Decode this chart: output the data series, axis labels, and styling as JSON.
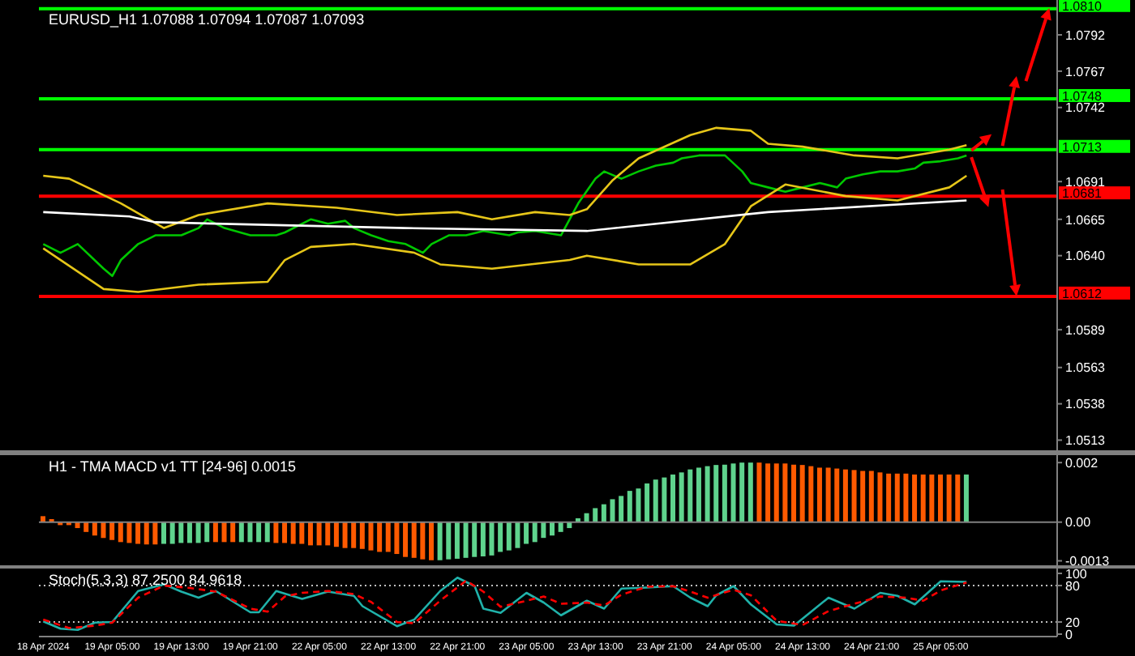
{
  "chart_data": [
    {
      "type": "line",
      "title": "EURUSD_H1 1.07088 1.07094 1.07087 1.07093",
      "tick_labels": "y",
      "marker": "none",
      "ylim": [
        1.0506,
        1.0816
      ],
      "yticks": [
        1.0513,
        1.0538,
        1.0563,
        1.0589,
        {
          "value": 1.064,
          "label": "1.0640"
        },
        1.0665,
        1.0691,
        1.0742,
        1.0767,
        1.0792
      ],
      "categories": [
        null,
        null,
        null,
        null,
        null,
        null,
        null,
        null,
        null,
        null,
        null,
        null,
        null,
        null,
        null,
        null,
        null,
        null,
        null,
        null,
        null,
        null,
        null,
        null,
        null,
        null,
        null,
        null,
        null,
        null,
        null,
        null,
        null,
        null,
        null,
        null,
        null,
        null,
        null,
        null,
        null,
        null,
        null,
        null,
        null,
        null,
        null,
        null,
        null,
        null,
        null,
        null,
        null,
        null,
        null,
        null,
        null,
        null,
        null,
        null,
        null,
        null,
        null,
        null,
        null,
        null,
        null,
        null,
        null,
        null,
        null,
        null,
        null,
        null,
        null,
        null,
        null,
        null,
        null,
        null,
        null,
        null,
        null,
        null,
        null,
        null,
        null,
        null,
        null,
        null,
        null,
        null,
        null,
        null,
        null,
        null,
        null,
        null,
        null,
        null,
        null,
        null,
        null,
        null,
        null,
        null,
        null,
        null,
        null,
        null,
        null,
        null,
        null,
        null,
        null,
        null,
        null,
        null
      ],
      "series": [
        {
          "color": "#00c800",
          "values": [
            1.0648,
            null,
            1.0642,
            null,
            1.0648,
            null,
            null,
            1.0631,
            1.0626,
            1.0637,
            null,
            1.0648,
            null,
            1.0654,
            null,
            null,
            1.0654,
            null,
            1.0659,
            1.0665,
            null,
            1.0659,
            null,
            null,
            1.0654,
            null,
            null,
            1.0654,
            1.0656,
            null,
            null,
            1.0665,
            null,
            1.0662,
            null,
            1.0664,
            1.0659,
            null,
            1.0654,
            null,
            1.065,
            null,
            1.0648,
            null,
            1.0642,
            1.0648,
            null,
            1.0654,
            null,
            1.0654,
            null,
            1.0657,
            null,
            null,
            1.0654,
            1.0656,
            null,
            1.0657,
            null,
            null,
            1.0654,
            1.0665,
            1.0676,
            null,
            1.0693,
            1.0698,
            null,
            1.0693,
            null,
            1.0698,
            null,
            1.0702,
            null,
            1.0704,
            1.0707,
            null,
            1.0709,
            null,
            null,
            1.0709,
            null,
            1.0698,
            1.069,
            null,
            1.0687,
            null,
            1.0684,
            null,
            1.0687,
            null,
            1.069,
            null,
            1.0687,
            1.0693,
            null,
            1.0696,
            null,
            1.0698,
            null,
            1.0698,
            null,
            1.07,
            1.0704,
            null,
            1.0705,
            null,
            1.0707,
            1.0709,
            null,
            null,
            null,
            null,
            null,
            null,
            null,
            null,
            null,
            null
          ]
        },
        {
          "color": "#e6c619",
          "values": [
            1.0695,
            null,
            null,
            1.0693,
            null,
            null,
            null,
            null,
            null,
            1.0676,
            null,
            null,
            null,
            null,
            1.0659,
            null,
            null,
            null,
            1.0668,
            null,
            null,
            null,
            null,
            null,
            null,
            null,
            1.0676,
            null,
            null,
            null,
            null,
            null,
            null,
            null,
            1.0673,
            null,
            null,
            null,
            null,
            null,
            null,
            1.0668,
            null,
            null,
            null,
            null,
            null,
            null,
            1.067,
            null,
            null,
            null,
            1.0665,
            null,
            null,
            null,
            null,
            1.067,
            null,
            null,
            null,
            1.0668,
            null,
            1.0672,
            null,
            null,
            1.0692,
            null,
            null,
            1.0707,
            null,
            null,
            null,
            null,
            null,
            1.0723,
            null,
            null,
            1.0728,
            null,
            null,
            null,
            1.0726,
            null,
            1.0717,
            null,
            null,
            null,
            1.0715,
            null,
            null,
            null,
            null,
            null,
            1.0709,
            null,
            null,
            null,
            null,
            1.0707,
            null,
            null,
            null,
            null,
            null,
            1.0713,
            null,
            1.0716,
            null,
            null,
            null,
            null,
            null,
            null,
            null,
            null,
            null,
            null
          ]
        },
        {
          "color": "#e6c619",
          "values": [
            1.0645,
            null,
            null,
            null,
            null,
            null,
            null,
            1.0617,
            null,
            null,
            null,
            1.0615,
            null,
            null,
            null,
            null,
            null,
            null,
            1.062,
            null,
            null,
            null,
            null,
            null,
            null,
            null,
            1.0622,
            null,
            1.0637,
            null,
            null,
            1.0646,
            null,
            null,
            null,
            null,
            1.0648,
            null,
            null,
            null,
            null,
            null,
            null,
            1.0642,
            null,
            null,
            1.0634,
            null,
            null,
            null,
            null,
            null,
            1.0631,
            null,
            null,
            null,
            null,
            null,
            null,
            null,
            null,
            1.0637,
            null,
            1.064,
            null,
            null,
            null,
            null,
            null,
            1.0634,
            null,
            null,
            null,
            null,
            null,
            1.0634,
            null,
            null,
            null,
            1.0648,
            null,
            null,
            1.0674,
            null,
            null,
            null,
            1.0689,
            null,
            null,
            null,
            null,
            null,
            null,
            1.0681,
            null,
            null,
            null,
            null,
            null,
            1.0678,
            null,
            null,
            null,
            null,
            null,
            1.0687,
            null,
            1.0695,
            null,
            null,
            null,
            null,
            null,
            null,
            null,
            null,
            null,
            null
          ]
        },
        {
          "color": "#ffffff",
          "values": [
            1.067,
            null,
            null,
            null,
            null,
            null,
            null,
            null,
            null,
            null,
            1.0667,
            null,
            null,
            1.0663,
            null,
            null,
            null,
            null,
            null,
            null,
            null,
            null,
            null,
            null,
            null,
            null,
            null,
            null,
            null,
            null,
            null,
            null,
            null,
            null,
            null,
            null,
            null,
            null,
            null,
            null,
            null,
            null,
            1.0659,
            null,
            null,
            null,
            null,
            null,
            null,
            null,
            null,
            null,
            null,
            null,
            null,
            null,
            null,
            null,
            null,
            null,
            null,
            null,
            null,
            1.0657,
            null,
            null,
            null,
            null,
            null,
            null,
            null,
            null,
            null,
            null,
            null,
            null,
            null,
            null,
            null,
            null,
            null,
            null,
            null,
            null,
            1.067,
            null,
            null,
            null,
            null,
            null,
            null,
            null,
            null,
            null,
            null,
            null,
            null,
            null,
            null,
            null,
            null,
            null,
            null,
            null,
            null,
            null,
            null,
            1.0678,
            null,
            null,
            null,
            null,
            null,
            null,
            null,
            null,
            null,
            null
          ]
        }
      ],
      "ref_lines": [
        {
          "axis": "y",
          "value": 1.081,
          "label": "1.0810",
          "color": "#00ff00",
          "line_style": "solid"
        },
        {
          "axis": "y",
          "value": 1.0748,
          "label": "1.0748",
          "color": "#00ff00",
          "line_style": "solid"
        },
        {
          "axis": "y",
          "value": 1.0713,
          "label": "1.0713",
          "color": "#00ff00",
          "line_style": "solid"
        },
        {
          "axis": "y",
          "value": 1.0681,
          "label": "1.0681",
          "color": "#ff0000",
          "line_style": "solid"
        },
        {
          "axis": "y",
          "value": 1.0612,
          "label": "1.0612",
          "color": "#ff0000",
          "line_style": "solid"
        }
      ]
    },
    {
      "type": "bar",
      "title": "H1 - TMA MACD v1 TT [24-96] 0.0015",
      "tick_labels": "y",
      "ylim": [
        -0.00145,
        0.00225
      ],
      "yticks": [
        0.002,
        {
          "value": 0,
          "label": "0.00"
        },
        -0.0013
      ],
      "categories": [
        null,
        null,
        null,
        null,
        null,
        null,
        null,
        null,
        null,
        null,
        null,
        null,
        null,
        null,
        null,
        null,
        null,
        null,
        null,
        null,
        null,
        null,
        null,
        null,
        null,
        null,
        null,
        null,
        null,
        null,
        null,
        null,
        null,
        null,
        null,
        null,
        null,
        null,
        null,
        null,
        null,
        null,
        null,
        null,
        null,
        null,
        null,
        null,
        null,
        null,
        null,
        null,
        null,
        null,
        null,
        null,
        null,
        null,
        null,
        null,
        null,
        null,
        null,
        null,
        null,
        null,
        null,
        null,
        null,
        null,
        null,
        null,
        null,
        null,
        null,
        null,
        null,
        null,
        null,
        null,
        null,
        null,
        null,
        null,
        null,
        null,
        null,
        null,
        null,
        null,
        null,
        null,
        null,
        null,
        null,
        null,
        null,
        null,
        null,
        null,
        null,
        null,
        null,
        null,
        null,
        null,
        null,
        null,
        null,
        null,
        null,
        null,
        null,
        null,
        null,
        null,
        null,
        null
      ],
      "values": [
        0.0002,
        0.0001,
        -0.0001,
        -0.0001,
        -0.0002,
        -0.00033,
        -0.00045,
        -0.00053,
        -0.0006,
        -0.00067,
        -0.0007,
        -0.00073,
        -0.00075,
        -0.00075,
        -0.00073,
        -0.00073,
        -0.0007,
        -0.0007,
        -0.0007,
        -0.00067,
        -0.00067,
        -0.00067,
        -0.00067,
        -0.00067,
        -0.00067,
        -0.00067,
        -0.00067,
        -0.0007,
        -0.0007,
        -0.00073,
        -0.00073,
        -0.00078,
        -0.00078,
        -0.00078,
        -0.00083,
        -0.00087,
        -0.00087,
        -0.0009,
        -0.00095,
        -0.001,
        -0.001,
        -0.00107,
        -0.00117,
        -0.0012,
        -0.00125,
        -0.00128,
        -0.00128,
        -0.00125,
        -0.00123,
        -0.0012,
        -0.00117,
        -0.00115,
        -0.00112,
        -0.001,
        -0.00095,
        -0.00087,
        -0.00073,
        -0.00067,
        -0.00053,
        -0.00045,
        -0.00033,
        -0.0002,
        0.00013,
        0.0003,
        0.00047,
        0.0006,
        0.00077,
        0.00088,
        0.00105,
        0.00113,
        0.0013,
        0.00143,
        0.0015,
        0.0016,
        0.00167,
        0.00177,
        0.00183,
        0.00188,
        0.00192,
        0.00193,
        0.00197,
        0.002,
        0.002,
        0.002,
        0.00197,
        0.00197,
        0.00197,
        0.00193,
        0.00192,
        0.00188,
        0.00183,
        0.00183,
        0.0018,
        0.00177,
        0.00175,
        0.00172,
        0.00172,
        0.00167,
        0.00163,
        0.00163,
        0.00163,
        0.0016,
        0.0016,
        0.0016,
        0.0016,
        0.0016,
        0.0016,
        0.0016,
        null,
        null,
        null,
        null,
        null,
        null,
        null,
        null,
        null,
        null
      ],
      "colors": [
        "#ff5a00",
        "#ff5a00",
        "#ff5a00",
        "#ff5a00",
        "#ff5a00",
        "#ff5a00",
        "#ff5a00",
        "#ff5a00",
        "#ff5a00",
        "#ff5a00",
        "#ff5a00",
        "#ff5a00",
        "#ff5a00",
        "#ff5a00",
        "#5fd38d",
        "#5fd38d",
        "#5fd38d",
        "#5fd38d",
        "#5fd38d",
        "#5fd38d",
        "#ff5a00",
        "#ff5a00",
        "#ff5a00",
        "#5fd38d",
        "#5fd38d",
        "#5fd38d",
        "#5fd38d",
        "#ff5a00",
        "#ff5a00",
        "#ff5a00",
        "#ff5a00",
        "#ff5a00",
        "#ff5a00",
        "#ff5a00",
        "#ff5a00",
        "#ff5a00",
        "#ff5a00",
        "#ff5a00",
        "#ff5a00",
        "#ff5a00",
        "#ff5a00",
        "#ff5a00",
        "#ff5a00",
        "#ff5a00",
        "#ff5a00",
        "#ff5a00",
        "#5fd38d",
        "#5fd38d",
        "#5fd38d",
        "#5fd38d",
        "#5fd38d",
        "#5fd38d",
        "#5fd38d",
        "#5fd38d",
        "#5fd38d",
        "#5fd38d",
        "#5fd38d",
        "#5fd38d",
        "#5fd38d",
        "#5fd38d",
        "#5fd38d",
        "#5fd38d",
        "#5fd38d",
        "#5fd38d",
        "#5fd38d",
        "#5fd38d",
        "#5fd38d",
        "#5fd38d",
        "#5fd38d",
        "#5fd38d",
        "#5fd38d",
        "#5fd38d",
        "#5fd38d",
        "#5fd38d",
        "#5fd38d",
        "#5fd38d",
        "#5fd38d",
        "#5fd38d",
        "#5fd38d",
        "#5fd38d",
        "#5fd38d",
        "#5fd38d",
        "#5fd38d",
        "#ff5a00",
        "#ff5a00",
        "#ff5a00",
        "#ff5a00",
        "#ff5a00",
        "#ff5a00",
        "#ff5a00",
        "#ff5a00",
        "#ff5a00",
        "#ff5a00",
        "#ff5a00",
        "#ff5a00",
        "#ff5a00",
        "#ff5a00",
        "#ff5a00",
        "#ff5a00",
        "#ff5a00",
        "#ff5a00",
        "#ff5a00",
        "#ff5a00",
        "#ff5a00",
        "#ff5a00",
        "#ff5a00",
        "#ff5a00",
        "#5fd38d",
        null,
        null,
        null,
        null,
        null,
        null,
        null,
        null,
        null,
        null
      ],
      "ref_lines": [
        {
          "axis": "y",
          "value": 0,
          "color": "#808080",
          "line_style": "solid"
        }
      ]
    },
    {
      "type": "line",
      "title": "Stoch(5,3,3) 87.2500 84.9618",
      "marker": "none",
      "ylim": [
        -4,
        108
      ],
      "yticks": [
        100,
        80,
        20,
        0
      ],
      "categories": [
        "18 Apr 2024",
        null,
        null,
        null,
        null,
        null,
        null,
        null,
        "19 Apr 05:00",
        null,
        null,
        null,
        null,
        null,
        null,
        null,
        "19 Apr 13:00",
        null,
        null,
        null,
        null,
        null,
        null,
        null,
        "19 Apr 21:00",
        null,
        null,
        null,
        null,
        null,
        null,
        null,
        "22 Apr 05:00",
        null,
        null,
        null,
        null,
        null,
        null,
        null,
        "22 Apr 13:00",
        null,
        null,
        null,
        null,
        null,
        null,
        null,
        "22 Apr 21:00",
        null,
        null,
        null,
        null,
        null,
        null,
        null,
        "23 Apr 05:00",
        null,
        null,
        null,
        null,
        null,
        null,
        null,
        "23 Apr 13:00",
        null,
        null,
        null,
        null,
        null,
        null,
        null,
        "23 Apr 21:00",
        null,
        null,
        null,
        null,
        null,
        null,
        null,
        "24 Apr 05:00",
        null,
        null,
        null,
        null,
        null,
        null,
        null,
        "24 Apr 13:00",
        null,
        null,
        null,
        null,
        null,
        null,
        null,
        "24 Apr 21:00",
        null,
        null,
        null,
        null,
        null,
        null,
        null,
        "25 Apr 05:00",
        null,
        null,
        null,
        null,
        null,
        null,
        null,
        null,
        null,
        null,
        null,
        null,
        null
      ],
      "series": [
        {
          "color": "#20b2aa",
          "line_style": "solid",
          "values": [
            21,
            null,
            9,
            null,
            7,
            null,
            19,
            null,
            20,
            null,
            null,
            71,
            null,
            null,
            82,
            null,
            70,
            null,
            60,
            null,
            71,
            null,
            null,
            null,
            36,
            36,
            null,
            71,
            null,
            null,
            58,
            null,
            null,
            70,
            null,
            null,
            63,
            46,
            null,
            null,
            null,
            13,
            null,
            24,
            null,
            null,
            71,
            null,
            93,
            null,
            79,
            42,
            null,
            35,
            null,
            57,
            68,
            null,
            52,
            null,
            31,
            null,
            null,
            55,
            null,
            42,
            null,
            75,
            null,
            76,
            null,
            null,
            null,
            79,
            null,
            60,
            null,
            46,
            64,
            null,
            79,
            null,
            49,
            null,
            null,
            16,
            null,
            14,
            null,
            null,
            null,
            60,
            null,
            null,
            42,
            null,
            null,
            68,
            null,
            63,
            null,
            49,
            null,
            null,
            87,
            null,
            null,
            86,
            null,
            null,
            null,
            null,
            null,
            null,
            null,
            null,
            null,
            null
          ]
        },
        {
          "color": "#ff0000",
          "line_style": "dashed",
          "values": [
            24,
            null,
            null,
            10,
            null,
            null,
            14,
            null,
            19,
            null,
            null,
            60,
            null,
            null,
            80,
            null,
            null,
            76,
            null,
            null,
            70,
            null,
            null,
            null,
            42,
            null,
            37,
            null,
            62,
            null,
            68,
            null,
            null,
            71,
            null,
            null,
            66,
            null,
            53,
            null,
            null,
            20,
            null,
            18,
            null,
            null,
            55,
            null,
            null,
            88,
            null,
            70,
            null,
            45,
            null,
            null,
            55,
            null,
            62,
            null,
            50,
            null,
            null,
            52,
            null,
            47,
            null,
            65,
            null,
            null,
            78,
            null,
            null,
            79,
            null,
            70,
            null,
            60,
            null,
            null,
            73,
            null,
            64,
            null,
            null,
            22,
            null,
            null,
            15,
            null,
            null,
            38,
            null,
            null,
            50,
            null,
            null,
            62,
            null,
            null,
            60,
            null,
            55,
            null,
            72,
            null,
            null,
            85,
            null,
            null,
            null,
            null,
            null,
            null,
            null,
            null,
            null,
            null
          ]
        }
      ],
      "ref_lines": [
        {
          "axis": "y",
          "value": 80,
          "color": "#c0c0c0",
          "line_style": "dotted"
        },
        {
          "axis": "y",
          "value": 20,
          "color": "#c0c0c0",
          "line_style": "dotted"
        }
      ]
    }
  ]
}
